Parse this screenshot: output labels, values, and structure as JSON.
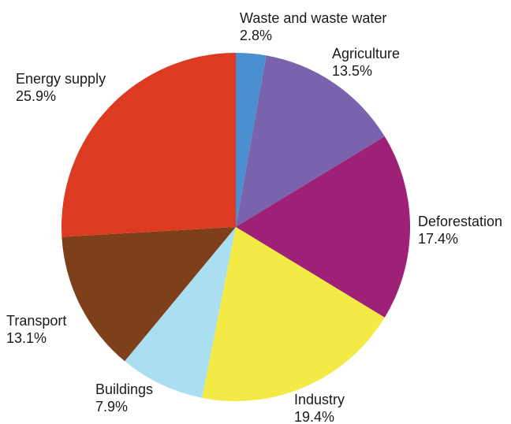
{
  "chart_data": {
    "type": "pie",
    "title": "",
    "start_angle_deg": 0,
    "direction": "clockwise",
    "slices": [
      {
        "label": "Waste and waste water",
        "value": 2.8,
        "value_text": "2.8%",
        "color": "#4a8fd0"
      },
      {
        "label": "Agriculture",
        "value": 13.5,
        "value_text": "13.5%",
        "color": "#7a63ad"
      },
      {
        "label": "Deforestation",
        "value": 17.4,
        "value_text": "17.4%",
        "color": "#9e2077"
      },
      {
        "label": "Industry",
        "value": 19.4,
        "value_text": "19.4%",
        "color": "#f3ea45"
      },
      {
        "label": "Buildings",
        "value": 7.9,
        "value_text": "7.9%",
        "color": "#aadff2"
      },
      {
        "label": "Transport",
        "value": 13.1,
        "value_text": "13.1%",
        "color": "#7e401b"
      },
      {
        "label": "Energy supply",
        "value": 25.9,
        "value_text": "25.9%",
        "color": "#dc3b22"
      }
    ]
  }
}
